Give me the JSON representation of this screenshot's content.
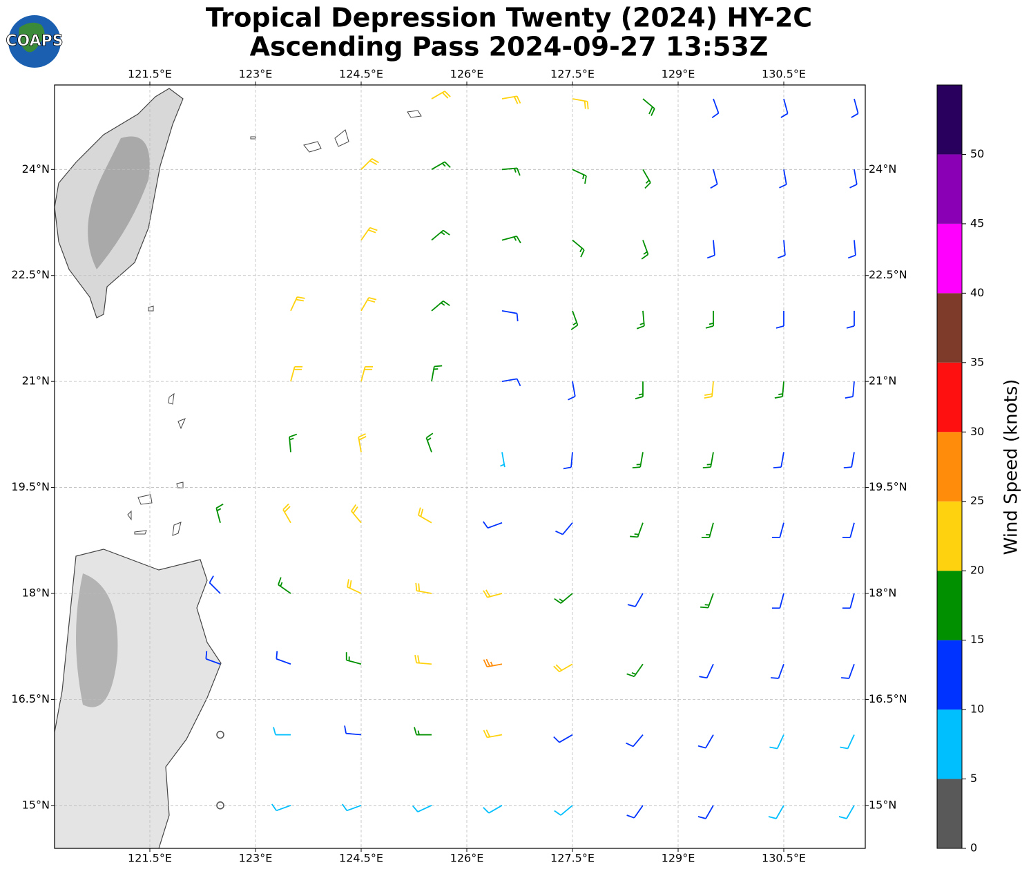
{
  "chart_data": {
    "type": "wind_barbs",
    "logo": "COAPS",
    "title": "Tropical Depression Twenty (2024) HY-2C",
    "subtitle": "Ascending Pass 2024-09-27 13:53Z",
    "xlim": [
      120.147,
      131.657
    ],
    "ylim": [
      14.392,
      25.196
    ],
    "xticks": [
      {
        "value": 121.5,
        "label": "121.5°E"
      },
      {
        "value": 123,
        "label": "123°E"
      },
      {
        "value": 124.5,
        "label": "124.5°E"
      },
      {
        "value": 126,
        "label": "126°E"
      },
      {
        "value": 127.5,
        "label": "127.5°E"
      },
      {
        "value": 129,
        "label": "129°E"
      },
      {
        "value": 130.5,
        "label": "130.5°E"
      }
    ],
    "yticks": [
      {
        "value": 15,
        "label": "15°N"
      },
      {
        "value": 16.5,
        "label": "16.5°N"
      },
      {
        "value": 18,
        "label": "18°N"
      },
      {
        "value": 19.5,
        "label": "19.5°N"
      },
      {
        "value": 21,
        "label": "21°N"
      },
      {
        "value": 22.5,
        "label": "22.5°N"
      },
      {
        "value": 24,
        "label": "24°N"
      }
    ],
    "grid": true,
    "barbs": {
      "lon": [
        125.5,
        126.5,
        127.5,
        128.5,
        129.5,
        130.5,
        131.5,
        124.5,
        125.5,
        126.5,
        127.5,
        128.5,
        129.5,
        130.5,
        131.5,
        124.5,
        125.5,
        126.5,
        127.5,
        128.5,
        129.5,
        130.5,
        131.5,
        123.5,
        124.5,
        125.5,
        126.5,
        127.5,
        128.5,
        129.5,
        130.5,
        131.5,
        123.5,
        124.5,
        125.5,
        126.5,
        127.5,
        128.5,
        129.5,
        130.5,
        131.5,
        123.5,
        124.5,
        125.5,
        126.5,
        127.5,
        128.5,
        129.5,
        130.5,
        131.5,
        122.5,
        123.5,
        124.5,
        125.5,
        126.5,
        127.5,
        128.5,
        129.5,
        130.5,
        131.5,
        122.5,
        123.5,
        124.5,
        125.5,
        126.5,
        127.5,
        128.5,
        129.5,
        130.5,
        131.5,
        122.5,
        123.5,
        124.5,
        125.5,
        126.5,
        127.5,
        128.5,
        129.5,
        130.5,
        131.5,
        122.5,
        123.5,
        124.5,
        125.5,
        126.5,
        127.5,
        128.5,
        129.5,
        130.5,
        131.5,
        122.5,
        123.5,
        124.5,
        125.5,
        126.5,
        127.5,
        128.5,
        129.5,
        130.5,
        131.5
      ],
      "lat": [
        25,
        25,
        25,
        25,
        25,
        25,
        25,
        24,
        24,
        24,
        24,
        24,
        24,
        24,
        24,
        23,
        23,
        23,
        23,
        23,
        23,
        23,
        23,
        22,
        22,
        22,
        22,
        22,
        22,
        22,
        22,
        22,
        21,
        21,
        21,
        21,
        21,
        21,
        21,
        21,
        21,
        20,
        20,
        20,
        20,
        20,
        20,
        20,
        20,
        20,
        19,
        19,
        19,
        19,
        19,
        19,
        19,
        19,
        19,
        19,
        18,
        18,
        18,
        18,
        18,
        18,
        18,
        18,
        18,
        18,
        17,
        17,
        17,
        17,
        17,
        17,
        17,
        17,
        17,
        17,
        16,
        16,
        16,
        16,
        16,
        16,
        16,
        16,
        16,
        16,
        15,
        15,
        15,
        15,
        15,
        15,
        15,
        15,
        15,
        15
      ],
      "speed": [
        22,
        22,
        22,
        18,
        12,
        12,
        12,
        22,
        17,
        17,
        17,
        17,
        12,
        12,
        12,
        22,
        17,
        17,
        17,
        17,
        12,
        12,
        12,
        22,
        22,
        17,
        12,
        17,
        17,
        17,
        12,
        12,
        22,
        22,
        17,
        12,
        12,
        17,
        22,
        17,
        12,
        17,
        22,
        17,
        7,
        12,
        17,
        17,
        12,
        12,
        17,
        22,
        22,
        22,
        12,
        12,
        17,
        17,
        12,
        12,
        12,
        17,
        22,
        22,
        22,
        17,
        12,
        17,
        12,
        12,
        12,
        12,
        17,
        22,
        27,
        22,
        17,
        12,
        12,
        12,
        2,
        8,
        12,
        17,
        22,
        12,
        12,
        12,
        8,
        8,
        2,
        8,
        8,
        8,
        8,
        8,
        12,
        12,
        8,
        8
      ],
      "direction": [
        60,
        80,
        100,
        130,
        160,
        165,
        165,
        45,
        60,
        85,
        115,
        150,
        165,
        170,
        170,
        35,
        50,
        75,
        130,
        160,
        175,
        175,
        175,
        25,
        30,
        50,
        100,
        160,
        175,
        180,
        180,
        180,
        15,
        15,
        10,
        80,
        170,
        180,
        185,
        185,
        185,
        355,
        350,
        340,
        170,
        185,
        190,
        190,
        190,
        190,
        345,
        330,
        320,
        300,
        250,
        220,
        200,
        195,
        195,
        195,
        315,
        305,
        295,
        280,
        255,
        230,
        210,
        200,
        195,
        195,
        290,
        290,
        285,
        275,
        260,
        240,
        215,
        205,
        200,
        200,
        270,
        270,
        275,
        270,
        260,
        240,
        220,
        210,
        205,
        205,
        250,
        250,
        250,
        245,
        240,
        230,
        215,
        210,
        210,
        210
      ]
    },
    "colorbar": {
      "label": "Wind Speed (knots)",
      "bounds": [
        0,
        5,
        10,
        15,
        20,
        25,
        30,
        35,
        40,
        45,
        50,
        55
      ],
      "colors": [
        "#595959",
        "#00bfff",
        "#0033ff",
        "#009000",
        "#ffd20f",
        "#ff8c0a",
        "#ff1010",
        "#7f3b2a",
        "#ff00ff",
        "#8a00b4",
        "#2a005f"
      ],
      "ticks": [
        0,
        5,
        10,
        15,
        20,
        25,
        30,
        35,
        40,
        45,
        50
      ]
    }
  }
}
